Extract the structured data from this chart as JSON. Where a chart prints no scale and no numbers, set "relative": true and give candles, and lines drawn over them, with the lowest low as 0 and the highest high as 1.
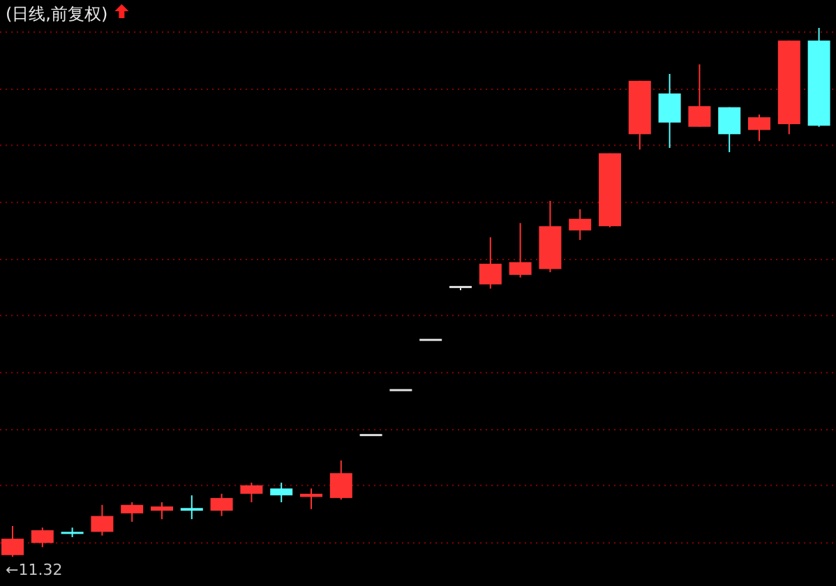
{
  "chart_data": {
    "type": "candlestick",
    "title": "(日线,前复权)",
    "relative": true,
    "categories": [
      null,
      null,
      null,
      null,
      null,
      null,
      null,
      null,
      null,
      null,
      null,
      null,
      null,
      null,
      null,
      null,
      null,
      null,
      null,
      null,
      null,
      null,
      null,
      null,
      null,
      null,
      null,
      null
    ],
    "ohlc": [
      [
        0.003,
        0.058,
        0,
        0.034
      ],
      [
        0.026,
        0.055,
        0.018,
        0.05
      ],
      [
        0.047,
        0.055,
        0.037,
        0.045
      ],
      [
        0.047,
        0.098,
        0.04,
        0.077
      ],
      [
        0.082,
        0.103,
        0.066,
        0.098
      ],
      [
        0.087,
        0.103,
        0.071,
        0.095
      ],
      [
        0.092,
        0.116,
        0.071,
        0.087
      ],
      [
        0.087,
        0.119,
        0.077,
        0.111
      ],
      [
        0.119,
        0.14,
        0.103,
        0.135
      ],
      [
        0.129,
        0.14,
        0.103,
        0.116
      ],
      [
        0.113,
        0.129,
        0.09,
        0.119
      ],
      [
        0.111,
        0.182,
        0.108,
        0.158
      ],
      [
        0.232,
        0.232,
        0.232,
        0.232
      ],
      [
        0.317,
        0.317,
        0.317,
        0.317
      ],
      [
        0.412,
        0.412,
        0.412,
        0.412
      ],
      [
        0.512,
        0.512,
        0.504,
        0.512
      ],
      [
        0.515,
        0.604,
        0.507,
        0.554
      ],
      [
        0.533,
        0.631,
        0.528,
        0.557
      ],
      [
        0.544,
        0.673,
        0.538,
        0.625
      ],
      [
        0.617,
        0.657,
        0.599,
        0.639
      ],
      [
        0.625,
        0.763,
        0.623,
        0.763
      ],
      [
        0.799,
        0.9,
        0.77,
        0.9
      ],
      [
        0.876,
        0.913,
        0.773,
        0.821
      ],
      [
        0.813,
        0.931,
        0.813,
        0.852
      ],
      [
        0.85,
        0.85,
        0.765,
        0.799
      ],
      [
        0.807,
        0.836,
        0.786,
        0.831
      ],
      [
        0.818,
        0.976,
        0.799,
        0.976
      ],
      [
        0.976,
        1,
        0.813,
        0.815
      ]
    ],
    "colors": [
      "#ff3232",
      "#ff3232",
      "#54ffff",
      "#ff3232",
      "#ff3232",
      "#ff3232",
      "#54ffff",
      "#ff3232",
      "#ff3232",
      "#54ffff",
      "#ff3232",
      "#ff3232",
      "#e0e0e0",
      "#e0e0e0",
      "#e0e0e0",
      "#e0e0e0",
      "#ff3232",
      "#ff3232",
      "#ff3232",
      "#ff3232",
      "#ff3232",
      "#ff3232",
      "#54ffff",
      "#ff3232",
      "#54ffff",
      "#ff3232",
      "#ff3232",
      "#54ffff"
    ],
    "ref_lines": [
      {
        "axis": "y",
        "value": 0.992,
        "color": "#8b0000",
        "line_style": "dotted"
      },
      {
        "axis": "y",
        "value": 0.884,
        "color": "#8b0000",
        "line_style": "dotted"
      },
      {
        "axis": "y",
        "value": 0.778,
        "color": "#8b0000",
        "line_style": "dotted"
      },
      {
        "axis": "y",
        "value": 0.67,
        "color": "#8b0000",
        "line_style": "dotted"
      },
      {
        "axis": "y",
        "value": 0.562,
        "color": "#8b0000",
        "line_style": "dotted"
      },
      {
        "axis": "y",
        "value": 0.456,
        "color": "#8b0000",
        "line_style": "dotted"
      },
      {
        "axis": "y",
        "value": 0.348,
        "color": "#8b0000",
        "line_style": "dotted"
      },
      {
        "axis": "y",
        "value": 0.24,
        "color": "#8b0000",
        "line_style": "dotted"
      },
      {
        "axis": "y",
        "value": 0.135,
        "color": "#8b0000",
        "line_style": "dotted"
      },
      {
        "axis": "y",
        "value": 0.026,
        "color": "#8b0000",
        "line_style": "dotted"
      }
    ],
    "annotations": [
      "←11.32"
    ]
  }
}
